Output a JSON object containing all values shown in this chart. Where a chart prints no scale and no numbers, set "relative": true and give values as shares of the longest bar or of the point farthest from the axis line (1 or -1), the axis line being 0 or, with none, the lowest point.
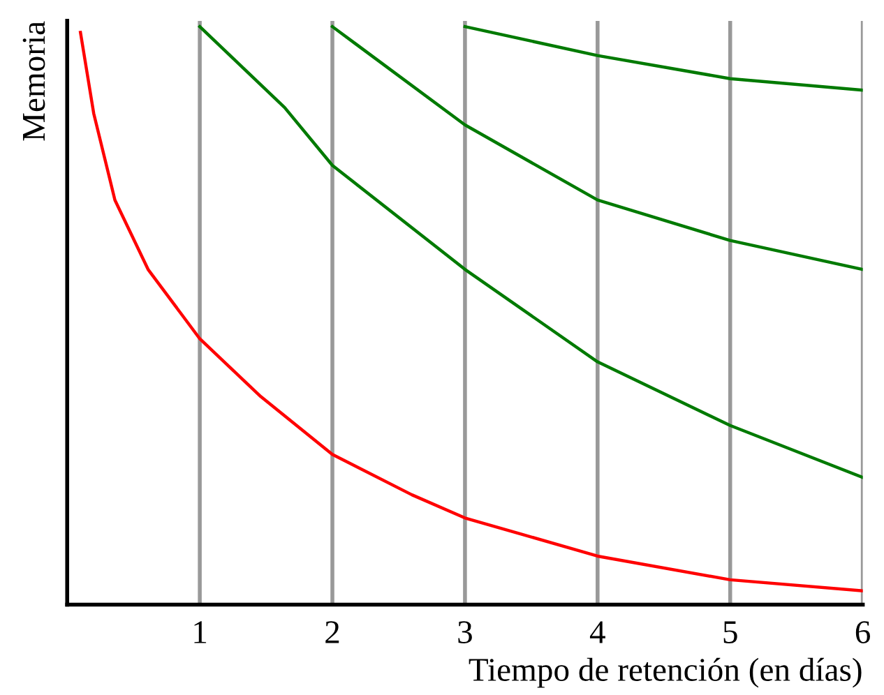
{
  "chart_data": {
    "type": "line",
    "relative": true,
    "xlabel": "Tiempo de retención (en días)",
    "ylabel": "Memoria",
    "xlim": [
      0,
      6
    ],
    "xticks": [
      1,
      2,
      3,
      4,
      5,
      6
    ],
    "grid": "x",
    "marker": "none",
    "line_style": "solid",
    "tick_labels": "x",
    "series": [
      {
        "color": "#ff0000",
        "x": [
          0.1,
          0.2,
          0.36,
          0.61,
          1.0,
          1.46,
          2.0,
          2.6,
          3.0,
          4.0,
          5.0,
          6.0
        ],
        "values": [
          0.99,
          0.85,
          0.7,
          0.58,
          0.46,
          0.36,
          0.26,
          0.19,
          0.15,
          0.084,
          0.043,
          0.024
        ]
      },
      {
        "color": "#007a00",
        "x": [
          1.0,
          1.64,
          2.0,
          3.0,
          4.0,
          5.0,
          6.0
        ],
        "values": [
          1.0,
          0.86,
          0.76,
          0.58,
          0.42,
          0.31,
          0.22
        ]
      },
      {
        "color": "#007a00",
        "x": [
          2.0,
          3.0,
          4.0,
          5.0,
          6.0
        ],
        "values": [
          1.0,
          0.83,
          0.7,
          0.63,
          0.58
        ]
      },
      {
        "color": "#007a00",
        "x": [
          3.0,
          4.0,
          5.0,
          6.0
        ],
        "values": [
          1.0,
          0.95,
          0.91,
          0.89
        ]
      }
    ]
  }
}
